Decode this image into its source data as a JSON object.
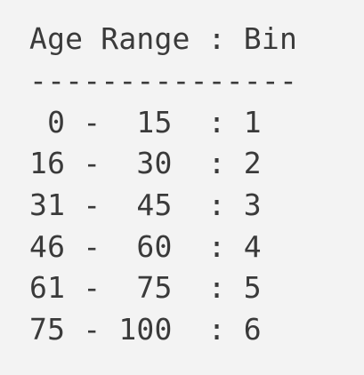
{
  "document": {
    "header": "Age Range : Bin",
    "separator": "---------------",
    "rows": [
      " 0 -  15  : 1",
      "16 -  30  : 2",
      "31 -  45  : 3",
      "46 -  60  : 4",
      "61 -  75  : 5",
      "75 - 100  : 6"
    ]
  }
}
